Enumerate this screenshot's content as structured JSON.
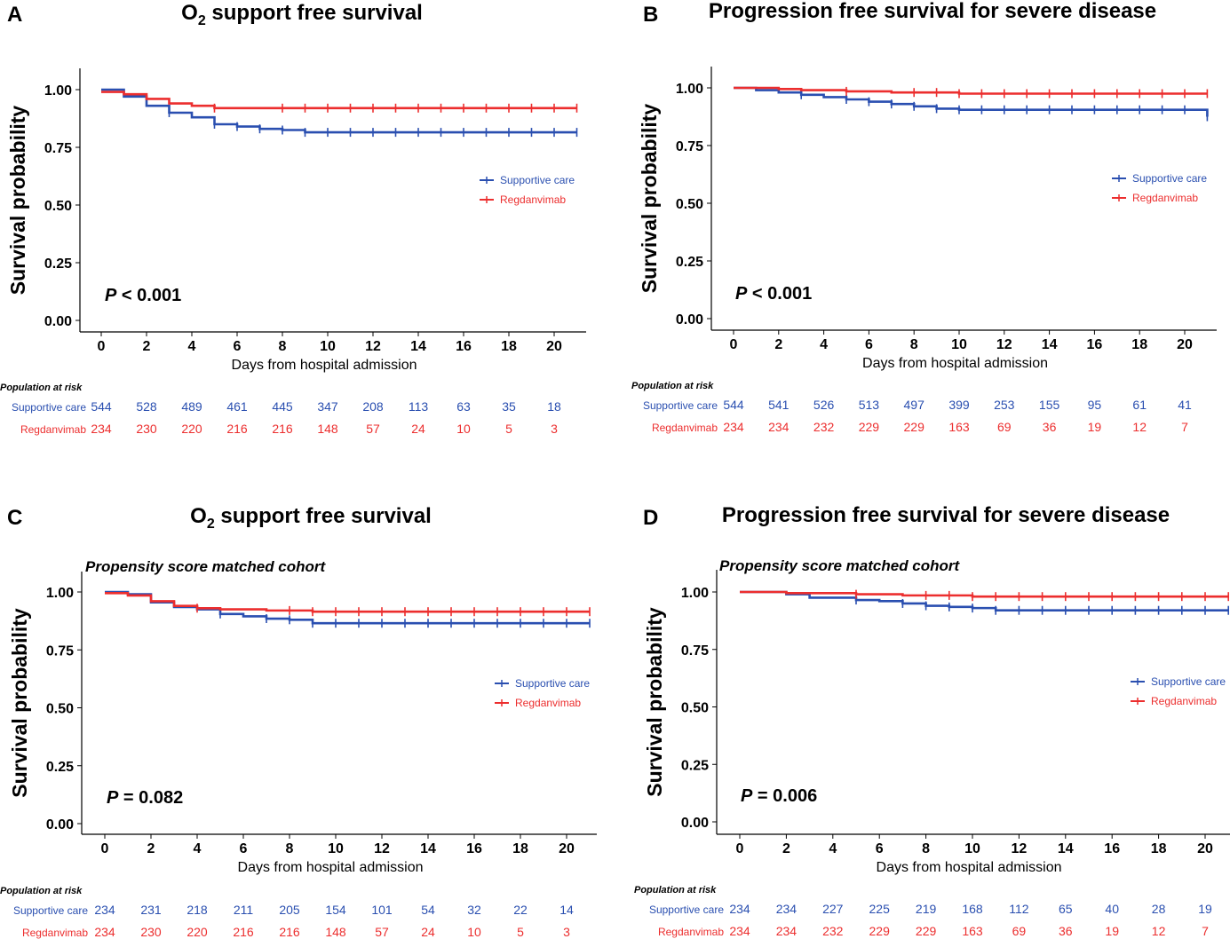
{
  "colors": {
    "supportive": "#2a4fb0",
    "regdanvimab": "#ec2e2e",
    "axis": "#000000"
  },
  "chart_data": [
    {
      "type": "line",
      "panel": "A",
      "title": "O2 support free survival",
      "title_main": "O",
      "title_sub": "2",
      "title_rest": " support free survival",
      "subtitle": "",
      "xlabel": "Days from hospital admission",
      "ylabel": "Survival probability",
      "xlim": [
        -1,
        21
      ],
      "ylim": [
        0,
        1
      ],
      "xticks": [
        0,
        2,
        4,
        6,
        8,
        10,
        12,
        14,
        16,
        18,
        20
      ],
      "yticks": [
        "0.00",
        "0.25",
        "0.50",
        "0.75",
        "1.00"
      ],
      "p_label": "P",
      "p_text": " < 0.001",
      "legend_position": "right",
      "legend": [
        "Supportive care",
        "Regdanvimab"
      ],
      "series": [
        {
          "name": "Supportive care",
          "x": [
            0,
            1,
            2,
            3,
            4,
            5,
            6,
            7,
            8,
            9,
            21
          ],
          "y": [
            1.0,
            0.97,
            0.93,
            0.9,
            0.88,
            0.85,
            0.84,
            0.83,
            0.825,
            0.815,
            0.815
          ],
          "censor_x": [
            3,
            5,
            6,
            7,
            8,
            9,
            10,
            11,
            12,
            13,
            14,
            15,
            16,
            17,
            18,
            19,
            20,
            21
          ]
        },
        {
          "name": "Regdanvimab",
          "x": [
            0,
            1,
            2,
            3,
            4,
            5,
            21
          ],
          "y": [
            0.99,
            0.98,
            0.96,
            0.94,
            0.93,
            0.92,
            0.92
          ],
          "censor_x": [
            5,
            8,
            9,
            10,
            11,
            12,
            13,
            14,
            15,
            16,
            17,
            18,
            19,
            20,
            21
          ]
        }
      ],
      "risk_table": {
        "header": "Population at risk",
        "times": [
          0,
          2,
          4,
          6,
          8,
          10,
          12,
          14,
          16,
          18,
          20
        ],
        "rows": [
          {
            "group": "Supportive care",
            "values": [
              "544",
              "528",
              "489",
              "461",
              "445",
              "347",
              "208",
              "113",
              "63",
              "35",
              "18"
            ]
          },
          {
            "group": "Regdanvimab",
            "values": [
              "234",
              "230",
              "220",
              "216",
              "216",
              "148",
              "57",
              "24",
              "10",
              "5",
              "3"
            ]
          }
        ]
      }
    },
    {
      "type": "line",
      "panel": "B",
      "title": "Progression free survival for severe disease",
      "title_main": "Progression free survival for severe disease",
      "title_sub": "",
      "title_rest": "",
      "subtitle": "",
      "xlabel": "Days from hospital admission",
      "ylabel": "Survival probability",
      "xlim": [
        -1,
        21
      ],
      "ylim": [
        0,
        1
      ],
      "xticks": [
        0,
        2,
        4,
        6,
        8,
        10,
        12,
        14,
        16,
        18,
        20
      ],
      "yticks": [
        "0.00",
        "0.25",
        "0.50",
        "0.75",
        "1.00"
      ],
      "p_label": "P",
      "p_text": " < 0.001",
      "legend_position": "right",
      "legend": [
        "Supportive care",
        "Regdanvimab"
      ],
      "series": [
        {
          "name": "Supportive care",
          "x": [
            0,
            1,
            2,
            3,
            4,
            5,
            6,
            7,
            8,
            9,
            10,
            20.8,
            21
          ],
          "y": [
            1.0,
            0.99,
            0.98,
            0.97,
            0.96,
            0.95,
            0.94,
            0.93,
            0.92,
            0.91,
            0.905,
            0.905,
            0.875
          ],
          "censor_x": [
            3,
            5,
            6,
            7,
            8,
            9,
            10,
            11,
            12,
            13,
            14,
            15,
            16,
            17,
            18,
            19,
            20,
            21
          ]
        },
        {
          "name": "Regdanvimab",
          "x": [
            0,
            2,
            3,
            5,
            7,
            10,
            21
          ],
          "y": [
            1.0,
            0.995,
            0.99,
            0.985,
            0.98,
            0.975,
            0.975
          ],
          "censor_x": [
            5,
            8,
            9,
            10,
            11,
            12,
            13,
            14,
            15,
            16,
            17,
            18,
            19,
            20,
            21
          ]
        }
      ],
      "risk_table": {
        "header": "Population at risk",
        "times": [
          0,
          2,
          4,
          6,
          8,
          10,
          12,
          14,
          16,
          18,
          20
        ],
        "rows": [
          {
            "group": "Supportive care",
            "values": [
              "544",
              "541",
              "526",
              "513",
              "497",
              "399",
              "253",
              "155",
              "95",
              "61",
              "41"
            ]
          },
          {
            "group": "Regdanvimab",
            "values": [
              "234",
              "234",
              "232",
              "229",
              "229",
              "163",
              "69",
              "36",
              "19",
              "12",
              "7"
            ]
          }
        ]
      }
    },
    {
      "type": "line",
      "panel": "C",
      "title": "O2 support free survival",
      "title_main": "O",
      "title_sub": "2",
      "title_rest": " support free survival",
      "subtitle": "Propensity score matched cohort",
      "xlabel": "Days from hospital admission",
      "ylabel": "Survival probability",
      "xlim": [
        -1,
        21
      ],
      "ylim": [
        0,
        1
      ],
      "xticks": [
        0,
        2,
        4,
        6,
        8,
        10,
        12,
        14,
        16,
        18,
        20
      ],
      "yticks": [
        "0.00",
        "0.25",
        "0.50",
        "0.75",
        "1.00"
      ],
      "p_label": "P",
      "p_text": " = 0.082",
      "legend_position": "right",
      "legend": [
        "Supportive care",
        "Regdanvimab"
      ],
      "series": [
        {
          "name": "Supportive care",
          "x": [
            0,
            1,
            2,
            3,
            4,
            5,
            6,
            7,
            8,
            9,
            21
          ],
          "y": [
            1.0,
            0.99,
            0.955,
            0.935,
            0.925,
            0.905,
            0.895,
            0.885,
            0.88,
            0.865,
            0.865
          ],
          "censor_x": [
            5,
            7,
            8,
            9,
            10,
            11,
            12,
            13,
            14,
            15,
            16,
            17,
            18,
            19,
            20,
            21
          ]
        },
        {
          "name": "Regdanvimab",
          "x": [
            0,
            1,
            2,
            3,
            4,
            5,
            7,
            9,
            21
          ],
          "y": [
            0.995,
            0.985,
            0.96,
            0.94,
            0.93,
            0.925,
            0.92,
            0.915,
            0.915
          ],
          "censor_x": [
            4,
            8,
            9,
            10,
            11,
            12,
            13,
            14,
            15,
            16,
            17,
            18,
            19,
            20,
            21
          ]
        }
      ],
      "risk_table": {
        "header": "Population at risk",
        "times": [
          0,
          2,
          4,
          6,
          8,
          10,
          12,
          14,
          16,
          18,
          20
        ],
        "rows": [
          {
            "group": "Supportive care",
            "values": [
              "234",
              "231",
              "218",
              "211",
              "205",
              "154",
              "101",
              "54",
              "32",
              "22",
              "14"
            ]
          },
          {
            "group": "Regdanvimab",
            "values": [
              "234",
              "230",
              "220",
              "216",
              "216",
              "148",
              "57",
              "24",
              "10",
              "5",
              "3"
            ]
          }
        ]
      }
    },
    {
      "type": "line",
      "panel": "D",
      "title": "Progression free survival for severe disease",
      "title_main": "Progression free survival for severe disease",
      "title_sub": "",
      "title_rest": "",
      "subtitle": "Propensity score matched cohort",
      "xlabel": "Days from hospital admission",
      "ylabel": "Survival probability",
      "xlim": [
        -1,
        21
      ],
      "ylim": [
        0,
        1
      ],
      "xticks": [
        0,
        2,
        4,
        6,
        8,
        10,
        12,
        14,
        16,
        18,
        20
      ],
      "yticks": [
        "0.00",
        "0.25",
        "0.50",
        "0.75",
        "1.00"
      ],
      "p_label": "P",
      "p_text": " = 0.006",
      "legend_position": "right",
      "legend": [
        "Supportive care",
        "Regdanvimab"
      ],
      "series": [
        {
          "name": "Supportive care",
          "x": [
            0,
            2,
            3,
            5,
            6,
            7,
            8,
            9,
            10,
            11,
            21
          ],
          "y": [
            1.0,
            0.99,
            0.975,
            0.965,
            0.96,
            0.95,
            0.94,
            0.935,
            0.93,
            0.92,
            0.92
          ],
          "censor_x": [
            5,
            7,
            8,
            9,
            10,
            11,
            12,
            13,
            14,
            15,
            16,
            17,
            18,
            19,
            20,
            21
          ]
        },
        {
          "name": "Regdanvimab",
          "x": [
            0,
            2,
            5,
            7,
            10,
            21
          ],
          "y": [
            1.0,
            0.995,
            0.99,
            0.985,
            0.98,
            0.98
          ],
          "censor_x": [
            5,
            8,
            9,
            10,
            11,
            12,
            13,
            14,
            15,
            16,
            17,
            18,
            19,
            20,
            21
          ]
        }
      ],
      "risk_table": {
        "header": "Population at risk",
        "times": [
          0,
          2,
          4,
          6,
          8,
          10,
          12,
          14,
          16,
          18,
          20
        ],
        "rows": [
          {
            "group": "Supportive care",
            "values": [
              "234",
              "234",
              "227",
              "225",
              "219",
              "168",
              "112",
              "65",
              "40",
              "28",
              "19"
            ]
          },
          {
            "group": "Regdanvimab",
            "values": [
              "234",
              "234",
              "232",
              "229",
              "229",
              "163",
              "69",
              "36",
              "19",
              "12",
              "7"
            ]
          }
        ]
      }
    }
  ]
}
